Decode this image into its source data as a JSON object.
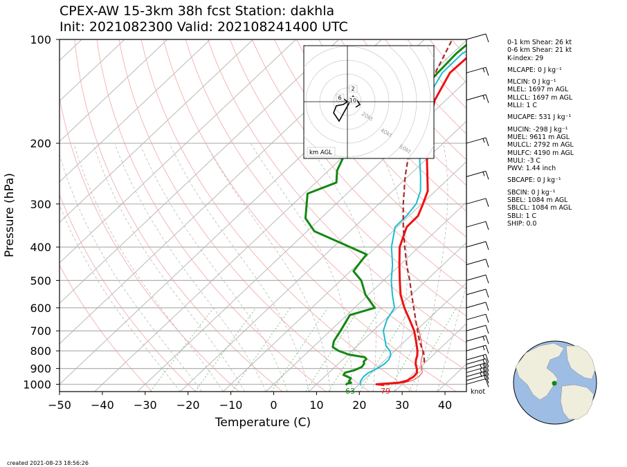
{
  "title": {
    "line1": "CPEX-AW 15-3km  38h fcst  Station: dakhla",
    "line2": "Init: 2021082300  Valid: 202108241400 UTC"
  },
  "footer": "created 2021-08-23 18:56:26",
  "stats": [
    "0-1 km Shear: 26 kt",
    "0-6 km Shear: 21 kt",
    "K-index: 29",
    "MLCAPE: 0 J kg⁻¹",
    "MLCIN: 0 J kg⁻¹",
    "MLEL: 1697 m AGL",
    "MLLCL: 1697 m AGL",
    "MLLI: 1 C",
    "MUCAPE: 531 J kg⁻¹",
    "MUCIN: -298 J kg⁻¹",
    "MUEL: 9611 m AGL",
    "MULCL: 2792 m AGL",
    "MULFC: 4190 m AGL",
    "MULI: -3 C",
    "PWV: 1.44 inch",
    "SBCAPE: 0 J kg⁻¹",
    "SBCIN: 0 J kg⁻¹",
    "SBEL: 1084 m AGL",
    "SBLCL: 1084 m AGL",
    "SBLI: 1 C",
    "SHIP: 0.0"
  ],
  "colors": {
    "temperature": "#ee1111",
    "dewpoint": "#118811",
    "wetbulb": "#17becf",
    "parcel": "#a52a2a",
    "isobar": "#b0b0b0",
    "isotherm": "#b8b8b8",
    "dry_adiabat": "#f4b6b6",
    "mixing_ratio": "#7cc27c",
    "globe_land": "#efeedd",
    "globe_ocean": "#9dbde4",
    "station_marker": "#118811"
  },
  "chart_data": {
    "type": "line",
    "chart_kind": "skew-T log-P sounding",
    "xlabel": "Temperature (C)",
    "ylabel": "Pressure (hPa)",
    "xlim": [
      -50,
      45
    ],
    "ylim": [
      1050,
      100
    ],
    "y_scale": "log",
    "x_ticks": [
      -50,
      -40,
      -30,
      -20,
      -10,
      0,
      10,
      20,
      30,
      40
    ],
    "y_ticks": [
      1000,
      900,
      800,
      700,
      600,
      500,
      400,
      300,
      200,
      100
    ],
    "surface_labels": {
      "temperature": "79",
      "dewpoint": "63"
    },
    "series": [
      {
        "key": "temperature",
        "points": [
          [
            1005,
            26
          ],
          [
            1000,
            24
          ],
          [
            990,
            28.8
          ],
          [
            975,
            30.3
          ],
          [
            950,
            30.8
          ],
          [
            925,
            30.6
          ],
          [
            900,
            29.5
          ],
          [
            875,
            28.2
          ],
          [
            850,
            27.2
          ],
          [
            825,
            26.4
          ],
          [
            800,
            25.3
          ],
          [
            750,
            22.6
          ],
          [
            700,
            19.6
          ],
          [
            650,
            15.8
          ],
          [
            600,
            11.6
          ],
          [
            550,
            7.5
          ],
          [
            500,
            3.8
          ],
          [
            450,
            -0.2
          ],
          [
            400,
            -4.5
          ],
          [
            350,
            -7.8
          ],
          [
            325,
            -7.9
          ],
          [
            300,
            -9.7
          ],
          [
            275,
            -11.8
          ],
          [
            250,
            -15.4
          ],
          [
            225,
            -19.4
          ],
          [
            200,
            -23.7
          ],
          [
            175,
            -28.2
          ],
          [
            150,
            -32.6
          ],
          [
            125,
            -35.8
          ],
          [
            110,
            -35.5
          ],
          [
            100,
            -33.8
          ]
        ]
      },
      {
        "key": "dewpoint",
        "points": [
          [
            1005,
            17
          ],
          [
            995,
            17
          ],
          [
            990,
            17.7
          ],
          [
            980,
            16.8
          ],
          [
            960,
            16.5
          ],
          [
            940,
            14
          ],
          [
            925,
            13.8
          ],
          [
            910,
            15.4
          ],
          [
            890,
            16.3
          ],
          [
            870,
            16
          ],
          [
            860,
            15.4
          ],
          [
            845,
            15.4
          ],
          [
            835,
            14.6
          ],
          [
            820,
            10.2
          ],
          [
            800,
            6.9
          ],
          [
            780,
            4.6
          ],
          [
            750,
            3.4
          ],
          [
            700,
            2.4
          ],
          [
            650,
            1.2
          ],
          [
            630,
            0.7
          ],
          [
            600,
            4.7
          ],
          [
            550,
            -0.7
          ],
          [
            500,
            -5.2
          ],
          [
            470,
            -9.3
          ],
          [
            440,
            -10
          ],
          [
            420,
            -10.4
          ],
          [
            360,
            -28.3
          ],
          [
            330,
            -33.6
          ],
          [
            280,
            -39.2
          ],
          [
            260,
            -35.2
          ],
          [
            240,
            -38
          ],
          [
            220,
            -39.8
          ],
          [
            200,
            -38.4
          ],
          [
            180,
            -36
          ],
          [
            170,
            -35.4
          ],
          [
            150,
            -36.4
          ],
          [
            130,
            -38.5
          ],
          [
            120,
            -38.8
          ],
          [
            110,
            -39.1
          ],
          [
            100,
            -38.7
          ]
        ]
      },
      {
        "key": "wetbulb",
        "points": [
          [
            1005,
            20.6
          ],
          [
            1000,
            20.2
          ],
          [
            980,
            19.5
          ],
          [
            950,
            19.1
          ],
          [
            925,
            19.3
          ],
          [
            900,
            20.3
          ],
          [
            875,
            20.8
          ],
          [
            850,
            20.8
          ],
          [
            825,
            20.2
          ],
          [
            800,
            18.9
          ],
          [
            775,
            16.8
          ],
          [
            750,
            15.4
          ],
          [
            700,
            12.4
          ],
          [
            650,
            10.5
          ],
          [
            600,
            9.3
          ],
          [
            550,
            5.6
          ],
          [
            500,
            1.8
          ],
          [
            450,
            -1.8
          ],
          [
            400,
            -6.4
          ],
          [
            350,
            -10.5
          ],
          [
            325,
            -10.6
          ],
          [
            300,
            -11.3
          ],
          [
            275,
            -13.5
          ],
          [
            250,
            -17
          ],
          [
            225,
            -21.1
          ],
          [
            200,
            -25.4
          ],
          [
            175,
            -30.1
          ],
          [
            150,
            -34.6
          ],
          [
            125,
            -37.6
          ],
          [
            110,
            -37.7
          ],
          [
            100,
            -35.5
          ]
        ]
      },
      {
        "key": "parcel",
        "points": [
          [
            865,
            29.8
          ],
          [
            825,
            28
          ],
          [
            800,
            26.6
          ],
          [
            775,
            25
          ],
          [
            750,
            23.4
          ],
          [
            725,
            21.9
          ],
          [
            700,
            20.4
          ],
          [
            650,
            17.2
          ],
          [
            600,
            13.8
          ],
          [
            550,
            10.1
          ],
          [
            500,
            6.1
          ],
          [
            450,
            1.5
          ],
          [
            400,
            -3.3
          ],
          [
            350,
            -8.6
          ],
          [
            300,
            -14.3
          ],
          [
            250,
            -20.6
          ],
          [
            200,
            -27.6
          ],
          [
            150,
            -35.2
          ],
          [
            125,
            -39.2
          ],
          [
            100,
            -43.5
          ]
        ]
      }
    ],
    "wind_barbs_kt": [
      {
        "p": 1000,
        "speed": 10
      },
      {
        "p": 975,
        "speed": 10
      },
      {
        "p": 950,
        "speed": 25
      },
      {
        "p": 925,
        "speed": 25
      },
      {
        "p": 900,
        "speed": 25
      },
      {
        "p": 875,
        "speed": 20
      },
      {
        "p": 850,
        "speed": 15
      },
      {
        "p": 800,
        "speed": 15
      },
      {
        "p": 750,
        "speed": 15
      },
      {
        "p": 700,
        "speed": 10
      },
      {
        "p": 650,
        "speed": 10
      },
      {
        "p": 600,
        "speed": 10
      },
      {
        "p": 550,
        "speed": 10
      },
      {
        "p": 500,
        "speed": 10
      },
      {
        "p": 450,
        "speed": 10
      },
      {
        "p": 400,
        "speed": 10
      },
      {
        "p": 350,
        "speed": 10
      },
      {
        "p": 300,
        "speed": 10
      },
      {
        "p": 250,
        "speed": 15
      },
      {
        "p": 200,
        "speed": 15
      },
      {
        "p": 150,
        "speed": 15
      },
      {
        "p": 125,
        "speed": 15
      },
      {
        "p": 100,
        "speed": 10
      }
    ],
    "wind_unit_label": "knot",
    "hodograph": {
      "ring_labels": [
        "20kt",
        "40kt",
        "60kt",
        "80kt"
      ],
      "height_labels": [
        "2",
        "6",
        "10"
      ],
      "legend": "km AGL",
      "points": [
        [
          -8,
          5
        ],
        [
          -4,
          3
        ],
        [
          0,
          0
        ],
        [
          -3,
          -2
        ],
        [
          -8,
          -3
        ],
        [
          -10,
          -8
        ],
        [
          -6,
          -14
        ],
        [
          4,
          4
        ],
        [
          7,
          1
        ],
        [
          9,
          -2
        ],
        [
          6,
          -4
        ]
      ]
    }
  }
}
